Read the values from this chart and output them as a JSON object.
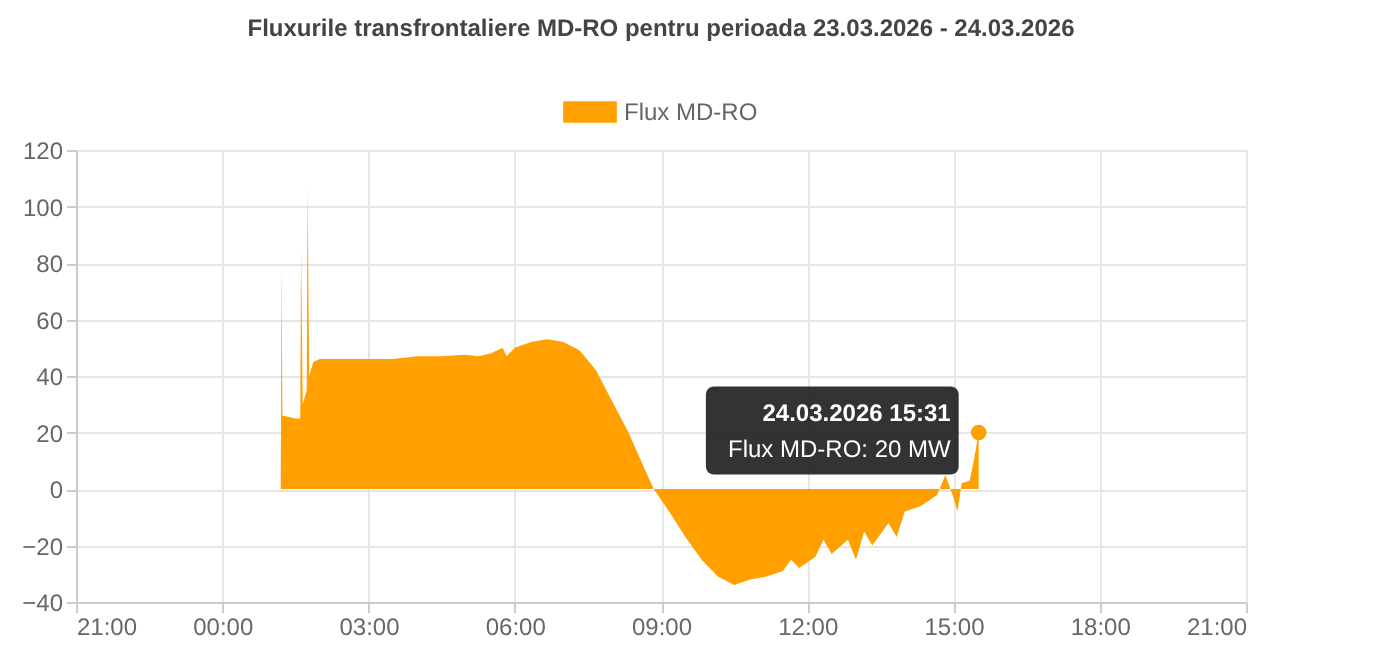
{
  "chart_data": {
    "type": "area",
    "title": "Fluxurile transfrontaliere MD-RO pentru perioada 23.03.2026 - 24.03.2026",
    "x": [
      "2026-03-23T21:00",
      "2026-03-24T01:12",
      "2026-03-24T01:13",
      "2026-03-24T01:14",
      "2026-03-24T01:30",
      "2026-03-24T01:36",
      "2026-03-24T01:37",
      "2026-03-24T01:39",
      "2026-03-24T01:44",
      "2026-03-24T01:45",
      "2026-03-24T01:47",
      "2026-03-24T01:52",
      "2026-03-24T02:00",
      "2026-03-24T02:30",
      "2026-03-24T03:00",
      "2026-03-24T03:30",
      "2026-03-24T04:00",
      "2026-03-24T04:30",
      "2026-03-24T05:00",
      "2026-03-24T05:15",
      "2026-03-24T05:30",
      "2026-03-24T05:45",
      "2026-03-24T05:50",
      "2026-03-24T06:00",
      "2026-03-24T06:20",
      "2026-03-24T06:40",
      "2026-03-24T07:00",
      "2026-03-24T07:20",
      "2026-03-24T07:40",
      "2026-03-24T08:00",
      "2026-03-24T08:20",
      "2026-03-24T08:40",
      "2026-03-24T08:51",
      "2026-03-24T09:10",
      "2026-03-24T09:30",
      "2026-03-24T09:50",
      "2026-03-24T10:10",
      "2026-03-24T10:30",
      "2026-03-24T10:50",
      "2026-03-24T11:10",
      "2026-03-24T11:30",
      "2026-03-24T11:40",
      "2026-03-24T11:50",
      "2026-03-24T12:10",
      "2026-03-24T12:20",
      "2026-03-24T12:30",
      "2026-03-24T12:50",
      "2026-03-24T13:00",
      "2026-03-24T13:10",
      "2026-03-24T13:20",
      "2026-03-24T13:40",
      "2026-03-24T13:50",
      "2026-03-24T14:00",
      "2026-03-24T14:20",
      "2026-03-24T14:40",
      "2026-03-24T14:50",
      "2026-03-24T15:00",
      "2026-03-24T15:05",
      "2026-03-24T15:10",
      "2026-03-24T15:20",
      "2026-03-24T15:25",
      "2026-03-24T15:31"
    ],
    "series": [
      {
        "name": "Flux MD-RO",
        "color": "#ffa000",
        "values": [
          0,
          0,
          80,
          26,
          25,
          25,
          85,
          30,
          35,
          107,
          40,
          45,
          46,
          46,
          46,
          46,
          47,
          47,
          47.5,
          47,
          48,
          50,
          47,
          50,
          52,
          53,
          52,
          49,
          42,
          31,
          20,
          7,
          0,
          -8,
          -17,
          -25,
          -31,
          -34,
          -32,
          -31,
          -29,
          -25,
          -28,
          -24,
          -18,
          -23,
          -18,
          -25,
          -15,
          -20,
          -12,
          -17,
          -8,
          -6,
          -2,
          5,
          -3,
          -8,
          2,
          3,
          10,
          20
        ]
      }
    ],
    "xlim": [
      "2026-03-23T21:00",
      "2026-03-24T21:00"
    ],
    "xticks": [
      {
        "value": "2026-03-23T21:00",
        "label": "21:00"
      },
      {
        "value": "2026-03-24T00:00",
        "label": "00:00"
      },
      {
        "value": "2026-03-24T03:00",
        "label": "03:00"
      },
      {
        "value": "2026-03-24T06:00",
        "label": "06:00"
      },
      {
        "value": "2026-03-24T09:00",
        "label": "09:00"
      },
      {
        "value": "2026-03-24T12:00",
        "label": "12:00"
      },
      {
        "value": "2026-03-24T15:00",
        "label": "15:00"
      },
      {
        "value": "2026-03-24T18:00",
        "label": "18:00"
      },
      {
        "value": "2026-03-24T21:00",
        "label": "21:00"
      }
    ],
    "ylim": [
      -40,
      120
    ],
    "yticks": [
      -40,
      -20,
      0,
      20,
      40,
      60,
      80,
      100,
      120
    ],
    "grid": true,
    "legend": "top",
    "annotations": [
      {
        "text": "24.03.2026 15:31",
        "x": "2026-03-24T15:31",
        "y": 20
      },
      {
        "text": "Flux MD-RO: 20 MW",
        "x": "2026-03-24T15:31",
        "y": 20
      }
    ]
  }
}
